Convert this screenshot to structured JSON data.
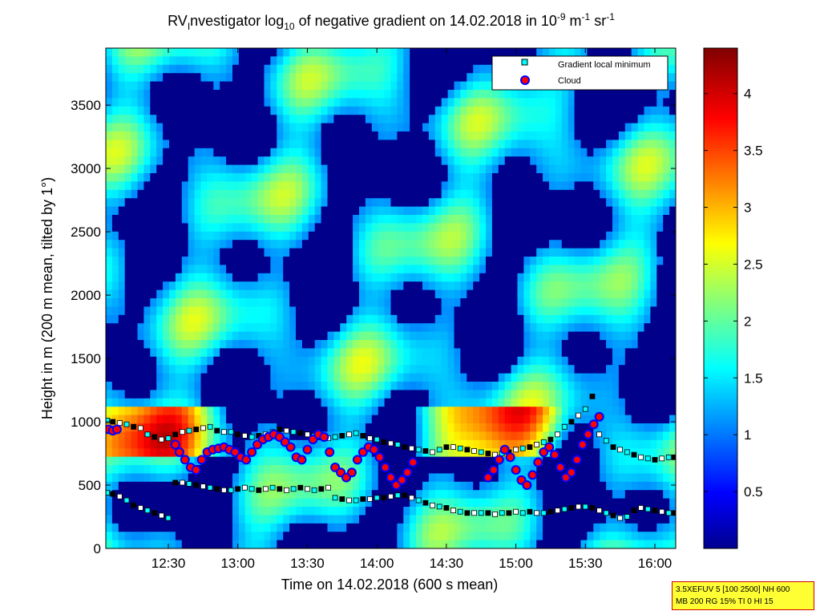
{
  "chart_data": {
    "type": "heatmap",
    "title": {
      "part1": "RV",
      "sub1": "I",
      "part2": "nvestigator log",
      "sub2": "10",
      "part3": " of negative gradient on 14.02.2018 in 10",
      "sup1": "-9",
      "part4": " m",
      "sup2": "-1",
      "part5": " sr",
      "sup3": "-1"
    },
    "xlabel": "Time on 14.02.2018 (600 s mean)",
    "ylabel": "Height in m (200 m mean, tilted by 1°)",
    "x_ticks": [
      "12:30",
      "13:00",
      "13:30",
      "14:00",
      "14:30",
      "15:00",
      "15:30",
      "16:00"
    ],
    "x_tick_hours": [
      12.5,
      13.0,
      13.5,
      14.0,
      14.5,
      15.0,
      15.5,
      16.0
    ],
    "xlim_hours": [
      12.05,
      16.15
    ],
    "y_ticks": [
      0,
      500,
      1000,
      1500,
      2000,
      2500,
      3000,
      3500
    ],
    "ylim": [
      0,
      3950
    ],
    "colorbar": {
      "range": [
        0,
        4.4
      ],
      "ticks": [
        0.5,
        1,
        1.5,
        2,
        2.5,
        3,
        3.5,
        4
      ],
      "tick_labels": [
        "0.5",
        "1",
        "1.5",
        "2",
        "2.5",
        "3",
        "3.5",
        "4"
      ],
      "colormap": "jet"
    },
    "legend": {
      "placement": "top-right",
      "entries": [
        {
          "label": "Gradient local minimum",
          "marker": "square",
          "color": "#00ffff"
        },
        {
          "label": "Cloud",
          "marker": "circle",
          "color": "#ff0000",
          "edge": "#0000ff"
        }
      ]
    },
    "series": [
      {
        "name": "Gradient local minimum",
        "hours": [
          12.06,
          12.1,
          12.15,
          12.2,
          12.25,
          12.3,
          12.35,
          12.4,
          12.45,
          12.5,
          12.55,
          12.6,
          12.65,
          12.7,
          12.75,
          12.8,
          12.85,
          12.9,
          12.95,
          13.0,
          13.05,
          13.1,
          13.15,
          13.2,
          13.25,
          13.3,
          13.35,
          13.4,
          13.45,
          13.5,
          13.55,
          13.6,
          13.65,
          13.7,
          13.75,
          13.8,
          13.85,
          13.9,
          13.95,
          14.0,
          14.05,
          14.1,
          14.15,
          14.2,
          14.25,
          14.3,
          14.35,
          14.4,
          14.45,
          14.5,
          14.55,
          14.6,
          14.65,
          14.7,
          14.75,
          14.8,
          14.85,
          14.9,
          14.95,
          15.0,
          15.05,
          15.1,
          15.15,
          15.2,
          15.25,
          15.3,
          15.35,
          15.4,
          15.45,
          15.5,
          15.55,
          15.6,
          15.65,
          15.7,
          15.75,
          15.8,
          15.85,
          15.9,
          15.95,
          16.0,
          16.05,
          16.1,
          16.14
        ],
        "heights": [
          1010,
          1000,
          990,
          980,
          960,
          950,
          900,
          880,
          860,
          870,
          900,
          920,
          930,
          940,
          950,
          960,
          930,
          920,
          920,
          900,
          890,
          880,
          890,
          900,
          920,
          940,
          930,
          920,
          910,
          900,
          890,
          880,
          870,
          880,
          890,
          900,
          910,
          890,
          870,
          860,
          840,
          830,
          820,
          800,
          790,
          780,
          770,
          760,
          780,
          800,
          800,
          790,
          780,
          770,
          760,
          750,
          740,
          750,
          760,
          780,
          790,
          800,
          820,
          840,
          860,
          900,
          960,
          1000,
          1050,
          1100,
          1200,
          900,
          850,
          800,
          780,
          760,
          740,
          720,
          710,
          700,
          710,
          720,
          720
        ]
      },
      {
        "name": "Gradient local minimum (lower layer)",
        "hours": [
          12.06,
          12.1,
          12.15,
          12.2,
          12.25,
          12.3,
          12.35,
          12.4,
          12.45,
          12.5,
          12.55,
          12.6,
          12.65,
          12.7,
          12.75,
          12.8,
          12.85,
          12.9,
          12.95,
          13.0,
          13.05,
          13.1,
          13.15,
          13.2,
          13.25,
          13.3,
          13.35,
          13.4,
          13.45,
          13.5,
          13.55,
          13.6,
          13.65,
          13.7,
          13.75,
          13.8,
          13.85,
          13.9,
          13.95,
          14.0,
          14.05,
          14.1,
          14.15,
          14.2,
          14.25,
          14.3,
          14.35,
          14.4,
          14.45,
          14.5,
          14.55,
          14.6,
          14.65,
          14.7,
          14.75,
          14.8,
          14.85,
          14.9,
          14.95,
          15.0,
          15.05,
          15.1,
          15.15,
          15.2,
          15.25,
          15.3,
          15.35,
          15.4,
          15.45,
          15.5,
          15.55,
          15.6,
          15.65,
          15.7,
          15.75,
          15.8,
          15.85,
          15.9,
          15.95,
          16.0,
          16.05,
          16.1,
          16.14
        ],
        "heights": [
          440,
          430,
          410,
          380,
          340,
          320,
          300,
          280,
          260,
          240,
          520,
          520,
          510,
          500,
          490,
          480,
          470,
          460,
          460,
          470,
          480,
          470,
          460,
          470,
          480,
          470,
          460,
          470,
          480,
          470,
          460,
          470,
          480,
          400,
          390,
          380,
          380,
          390,
          390,
          400,
          400,
          410,
          420,
          420,
          400,
          380,
          360,
          340,
          330,
          320,
          300,
          290,
          280,
          280,
          280,
          280,
          270,
          280,
          280,
          290,
          280,
          290,
          280,
          280,
          290,
          300,
          310,
          320,
          330,
          330,
          320,
          300,
          280,
          260,
          240,
          250,
          300,
          320,
          310,
          300,
          290,
          280,
          280
        ]
      },
      {
        "name": "Cloud",
        "hours": [
          12.07,
          12.1,
          12.13,
          12.55,
          12.58,
          12.62,
          12.66,
          12.7,
          12.74,
          12.78,
          12.82,
          12.86,
          12.9,
          12.94,
          12.98,
          13.02,
          13.06,
          13.1,
          13.14,
          13.18,
          13.22,
          13.26,
          13.3,
          13.34,
          13.38,
          13.42,
          13.46,
          13.5,
          13.54,
          13.58,
          13.62,
          13.66,
          13.7,
          13.74,
          13.78,
          13.82,
          13.86,
          13.9,
          13.94,
          13.98,
          14.02,
          14.06,
          14.1,
          14.14,
          14.18,
          14.22,
          14.26,
          14.8,
          14.84,
          14.88,
          14.92,
          14.96,
          15.0,
          15.04,
          15.08,
          15.12,
          15.16,
          15.2,
          15.24,
          15.28,
          15.32,
          15.36,
          15.4,
          15.44,
          15.48,
          15.52,
          15.56,
          15.6
        ],
        "heights": [
          940,
          930,
          940,
          820,
          760,
          700,
          640,
          620,
          700,
          760,
          780,
          790,
          800,
          780,
          760,
          720,
          700,
          760,
          820,
          860,
          880,
          900,
          880,
          840,
          800,
          720,
          700,
          780,
          860,
          900,
          880,
          760,
          640,
          600,
          560,
          600,
          700,
          760,
          800,
          780,
          720,
          640,
          560,
          500,
          540,
          600,
          680,
          560,
          620,
          700,
          780,
          720,
          620,
          540,
          500,
          580,
          680,
          760,
          800,
          740,
          640,
          560,
          600,
          700,
          820,
          900,
          980,
          1040
        ]
      }
    ]
  },
  "infobox": {
    "line1": "3.5XEFUV 5 [100 2500] NH 600",
    "line2": "MB 200 RG 15% TI 0 HI 15"
  }
}
